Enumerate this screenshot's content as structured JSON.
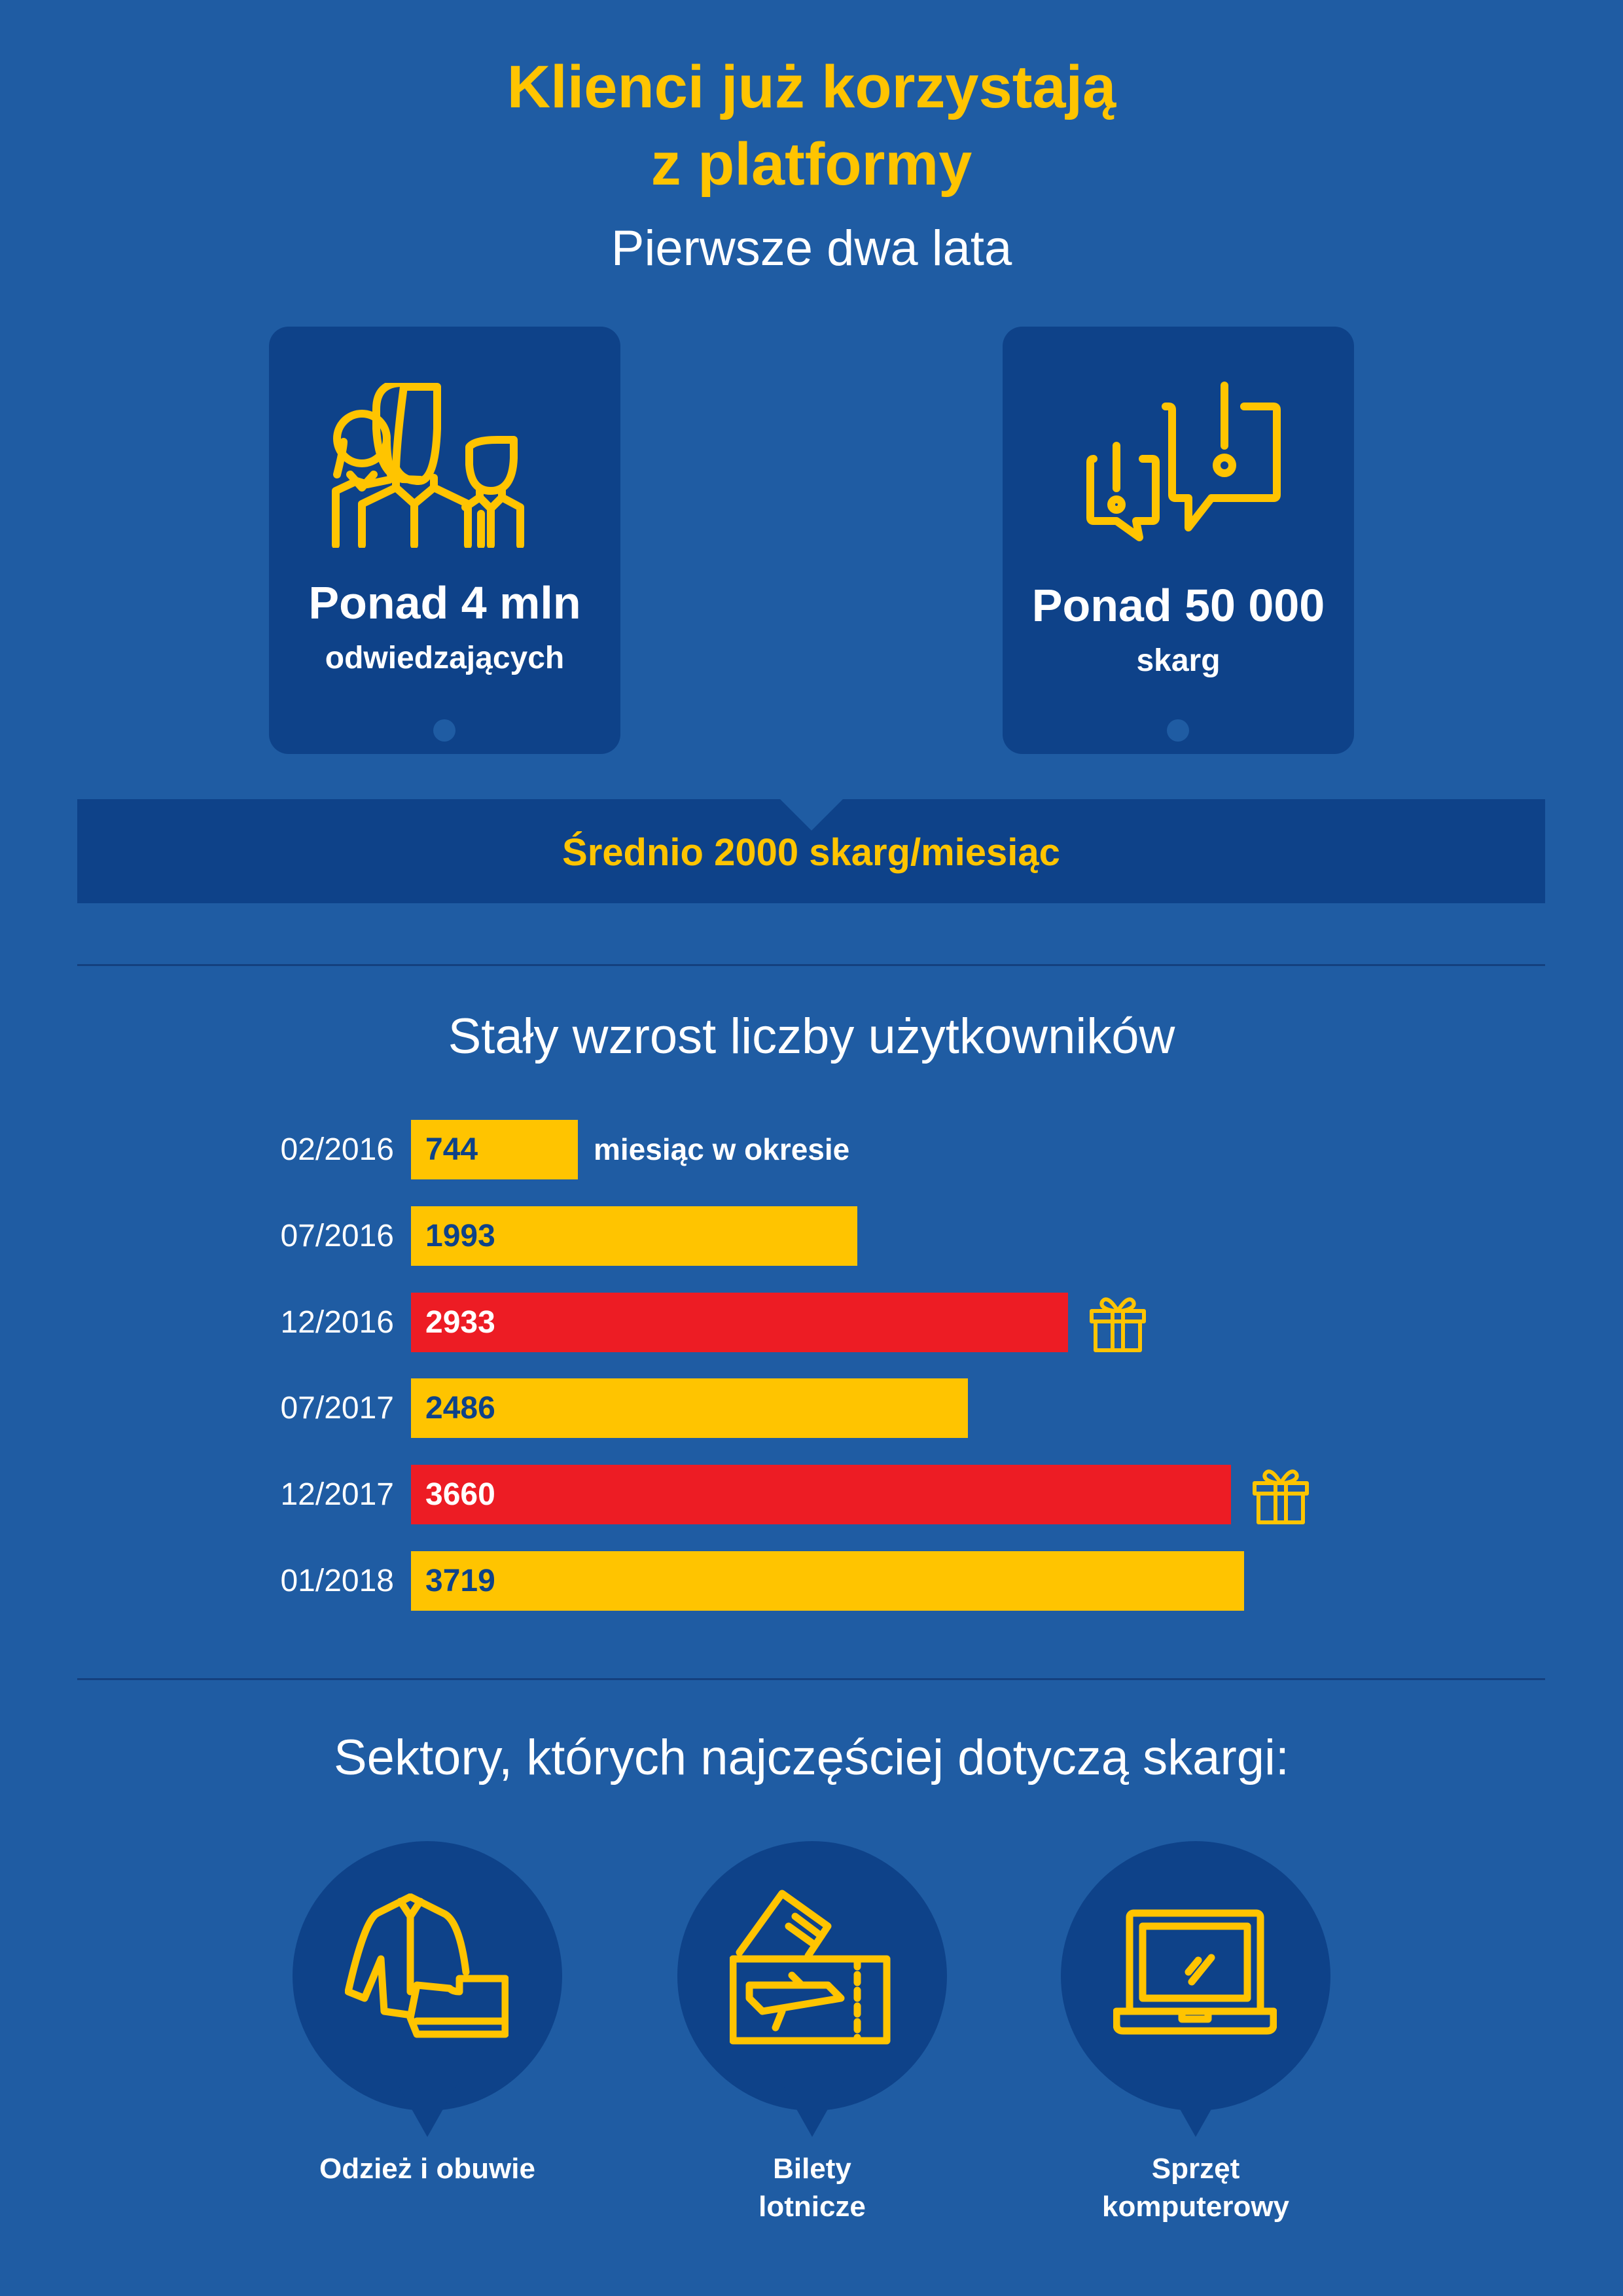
{
  "header": {
    "title_line1": "Klienci już korzystają",
    "title_line2": "z platformy",
    "subtitle": "Pierwsze dwa lata"
  },
  "stats": [
    {
      "value": "Ponad 4 mln",
      "label": "odwiedzających",
      "icon": "people-icon"
    },
    {
      "value": "Ponad 50 000",
      "label": "skarg",
      "icon": "complaint-bubbles-icon"
    }
  ],
  "banner": {
    "text": "Średnio 2000 skarg/miesiąc"
  },
  "colors": {
    "background": "#1f5ca3",
    "panel": "#0e4289",
    "yellow": "#ffc400",
    "red": "#ed1c24"
  },
  "chart_data": {
    "type": "bar",
    "title": "Stały wzrost liczby użytkowników",
    "orientation": "horizontal",
    "categories": [
      "02/2016",
      "07/2016",
      "12/2016",
      "07/2017",
      "12/2017",
      "01/2018"
    ],
    "values": [
      744,
      1993,
      2933,
      2486,
      3660,
      3719
    ],
    "highlight": [
      false,
      false,
      true,
      false,
      true,
      false
    ],
    "gift_icon": [
      false,
      false,
      true,
      false,
      true,
      false
    ],
    "annotation": "miesiąc w okresie",
    "xlim": [
      0,
      3719
    ]
  },
  "sectors": {
    "title": "Sektory, których najczęściej dotyczą skargi:",
    "items": [
      {
        "line1": "Odzież i obuwie",
        "line2": "",
        "icon": "clothing-shoes-icon"
      },
      {
        "line1": "Bilety",
        "line2": "lotnicze",
        "icon": "plane-tickets-icon"
      },
      {
        "line1": "Sprzęt",
        "line2": "komputerowy",
        "icon": "laptop-icon"
      }
    ]
  }
}
